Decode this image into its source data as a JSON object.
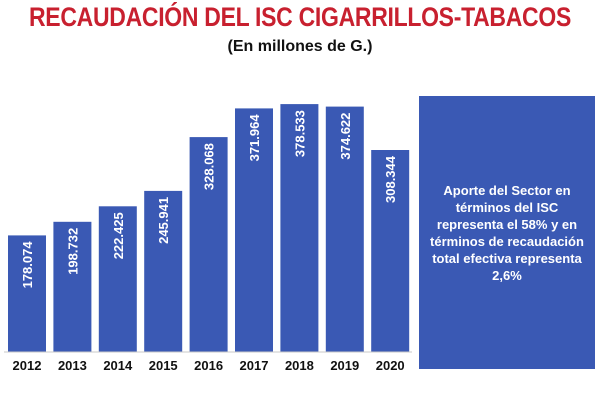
{
  "header": {
    "title": "RECAUDACIÓN DEL ISC CIGARRILLOS-TABACOS",
    "subtitle": "(En millones de G.)"
  },
  "note": {
    "text": "Aporte del Sector en términos del ISC representa el 58% y en términos de recaudación total efectiva representa 2,6%"
  },
  "colors": {
    "bar": "#3a59b4",
    "title": "#c8202f",
    "note_box": "#3a59b4"
  },
  "chart_data": {
    "type": "bar",
    "title": "RECAUDACIÓN DEL ISC CIGARRILLOS-TABACOS",
    "subtitle": "(En millones de G.)",
    "categories": [
      "2012",
      "2013",
      "2014",
      "2015",
      "2016",
      "2017",
      "2018",
      "2019",
      "2020"
    ],
    "values": [
      178074,
      198732,
      222425,
      245941,
      328068,
      371964,
      378533,
      374622,
      308344
    ],
    "value_labels": [
      "178.074",
      "198.732",
      "222.425",
      "245.941",
      "328.068",
      "371.964",
      "378.533",
      "374.622",
      "308.344"
    ],
    "xlabel": "",
    "ylabel": "",
    "ylim": [
      0,
      400000
    ],
    "grid": false,
    "legend": "none"
  }
}
